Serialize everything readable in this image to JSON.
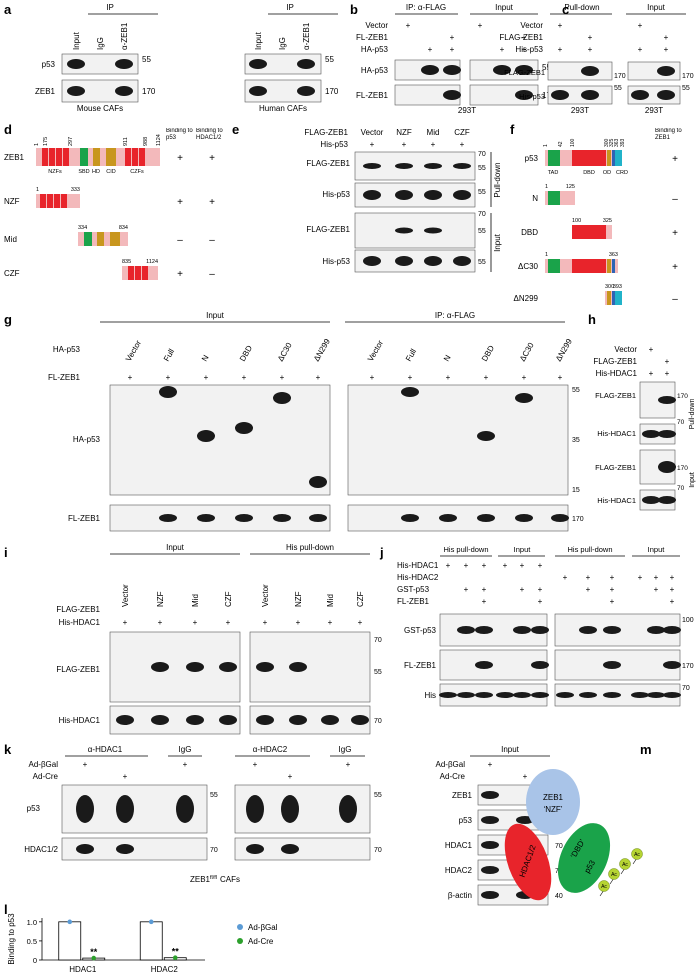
{
  "panels": {
    "a": {
      "label": "a",
      "ip": [
        "IP",
        "IP"
      ],
      "lanes": [
        "Input",
        "IgG",
        "α-ZEB1",
        "Input",
        "IgG",
        "α-ZEB1"
      ],
      "rows": [
        "p53",
        "ZEB1"
      ],
      "mw": [
        55,
        170,
        55,
        170
      ],
      "cells": [
        "Mouse CAFs",
        "Human CAFs"
      ]
    },
    "b": {
      "label": "b",
      "headers": [
        "IP: α-FLAG",
        "Input"
      ],
      "conditions": [
        {
          "name": "Vector",
          "marks": [
            "+",
            null,
            null,
            "+",
            null,
            null
          ]
        },
        {
          "name": "FL-ZEB1",
          "marks": [
            null,
            null,
            "+",
            null,
            null,
            "+"
          ]
        },
        {
          "name": "HA-p53",
          "marks": [
            null,
            "+",
            "+",
            null,
            "+",
            "+"
          ]
        }
      ],
      "rows": [
        "HA-p53",
        "FL-ZEB1"
      ],
      "mw": [
        55,
        170
      ],
      "cell": "293T"
    },
    "c": {
      "label": "c",
      "headers": [
        "Pull-down",
        "Input"
      ],
      "conditions": [
        {
          "name": "Vector",
          "marks": [
            "+",
            null,
            "+",
            null
          ]
        },
        {
          "name": "FLAG-ZEB1",
          "marks": [
            null,
            "+",
            null,
            "+"
          ]
        },
        {
          "name": "His-p53",
          "marks": [
            "+",
            "+",
            "+",
            "+"
          ]
        }
      ],
      "rows": [
        "FLAG-ZEB1",
        "His-p53"
      ],
      "mw": [
        170,
        55,
        170,
        55
      ],
      "cells": [
        "293T",
        "293T"
      ]
    },
    "d": {
      "label": "d",
      "positions": [
        1,
        175,
        297,
        911,
        988,
        1124
      ],
      "domains": [
        "NZFs",
        "SBD",
        "HD",
        "CID",
        "CZFs"
      ],
      "headers": [
        "Binding to p53",
        "Binding to HDAC1/2"
      ],
      "constructs": [
        {
          "name": "ZEB1",
          "binding": [
            "+",
            "+"
          ]
        },
        {
          "name": "NZF",
          "range": [
            1,
            333
          ],
          "binding": [
            "+",
            "+"
          ]
        },
        {
          "name": "Mid",
          "range": [
            334,
            834
          ],
          "binding": [
            "–",
            "–"
          ]
        },
        {
          "name": "CZF",
          "range": [
            835,
            1124
          ],
          "binding": [
            "+",
            "–"
          ]
        }
      ]
    },
    "e": {
      "label": "e",
      "conditions": [
        {
          "name": "FLAG-ZEB1",
          "marks": [
            "Vector",
            "NZF",
            "Mid",
            "CZF"
          ]
        },
        {
          "name": "His-p53",
          "marks": [
            "+",
            "+",
            "+",
            "+"
          ]
        }
      ],
      "rows": [
        "FLAG-ZEB1",
        "His-p53",
        "FLAG-ZEB1",
        "His-p53"
      ],
      "mw": [
        70,
        55,
        55,
        70,
        55,
        55
      ],
      "sections": [
        "Pull-down",
        "Input"
      ]
    },
    "f": {
      "label": "f",
      "positions": [
        1,
        42,
        100,
        300,
        325,
        363,
        393
      ],
      "domains": [
        "TAD",
        "DBD",
        "OD",
        "CRD"
      ],
      "header": "Binding to ZEB1",
      "constructs": [
        {
          "name": "p53",
          "binding": "+"
        },
        {
          "name": "N",
          "range": [
            1,
            125
          ],
          "binding": "–"
        },
        {
          "name": "DBD",
          "range": [
            100,
            325
          ],
          "binding": "+"
        },
        {
          "name": "ΔC30",
          "range": [
            1,
            363
          ],
          "binding": "+"
        },
        {
          "name": "ΔN299",
          "range": [
            300,
            393
          ],
          "binding": "–"
        }
      ]
    },
    "g": {
      "label": "g",
      "headers": [
        "Input",
        "IP: α-FLAG"
      ],
      "conditions": [
        {
          "name": "HA-p53",
          "lanes": [
            "Vector",
            "Full",
            "N",
            "DBD",
            "ΔC30",
            "ΔN299"
          ]
        },
        {
          "name": "FL-ZEB1",
          "marks": [
            "+",
            "+",
            "+",
            "+",
            "+",
            "+",
            "+",
            "+",
            "+",
            "+",
            "+",
            "+"
          ]
        }
      ],
      "rows": [
        "HA-p53",
        "FL-ZEB1"
      ],
      "mw": [
        55,
        35,
        15,
        170
      ]
    },
    "h": {
      "label": "h",
      "conditions": [
        {
          "name": "Vector",
          "marks": [
            "+",
            null
          ]
        },
        {
          "name": "FLAG-ZEB1",
          "marks": [
            null,
            "+"
          ]
        },
        {
          "name": "His-HDAC1",
          "marks": [
            "+",
            "+"
          ]
        }
      ],
      "rows": [
        "FLAG-ZEB1",
        "His-HDAC1",
        "FLAG-ZEB1",
        "His-HDAC1"
      ],
      "mw": [
        170,
        70,
        170,
        70
      ],
      "sections": [
        "Pull-down",
        "Input"
      ]
    },
    "i": {
      "label": "i",
      "headers": [
        "Input",
        "His pull-down"
      ],
      "lanes": [
        "Vector",
        "NZF",
        "Mid",
        "CZF"
      ],
      "conditions": [
        {
          "name": "FLAG-ZEB1"
        },
        {
          "name": "His-HDAC1",
          "marks": [
            "+",
            "+",
            "+",
            "+",
            "+",
            "+",
            "+",
            "+"
          ]
        }
      ],
      "rows": [
        "FLAG-ZEB1",
        "His-HDAC1"
      ],
      "mw": [
        70,
        55,
        70
      ]
    },
    "j": {
      "label": "j",
      "headers": [
        "His pull-down",
        "Input",
        "His pull-down",
        "Input"
      ],
      "conditions": [
        {
          "name": "His-HDAC1",
          "marks": [
            "+",
            "+",
            "+",
            "+",
            "+",
            "+",
            null,
            null,
            null,
            null,
            null,
            null
          ]
        },
        {
          "name": "His-HDAC2",
          "marks": [
            null,
            null,
            null,
            null,
            null,
            null,
            "+",
            "+",
            "+",
            "+",
            "+",
            "+"
          ]
        },
        {
          "name": "GST-p53",
          "marks": [
            null,
            "+",
            "+",
            null,
            "+",
            "+",
            null,
            "+",
            "+",
            null,
            "+",
            "+"
          ]
        },
        {
          "name": "FL-ZEB1",
          "marks": [
            null,
            null,
            "+",
            null,
            null,
            "+",
            null,
            null,
            "+",
            null,
            null,
            "+"
          ]
        }
      ],
      "rows": [
        "GST-p53",
        "FL-ZEB1",
        "His"
      ],
      "mw": [
        100,
        170,
        70
      ]
    },
    "k": {
      "label": "k",
      "headers": [
        "α-HDAC1",
        "IgG",
        "α-HDAC2",
        "IgG"
      ],
      "conditions": [
        {
          "name": "Ad-βGal",
          "marks": [
            "+",
            null,
            "+",
            "+",
            null,
            "+"
          ]
        },
        {
          "name": "Ad-Cre",
          "marks": [
            null,
            "+",
            null,
            null,
            "+",
            null
          ]
        }
      ],
      "rows": [
        "p53",
        "HDAC1/2"
      ],
      "mw": [
        55,
        70,
        55,
        70
      ],
      "caption": {
        "gene": "ZEB1",
        "sup": "fl/fl",
        "cells": "CAFs"
      }
    },
    "k_input": {
      "header": "Input",
      "conditions": [
        {
          "name": "Ad-βGal",
          "marks": [
            "+",
            null
          ]
        },
        {
          "name": "Ad-Cre",
          "marks": [
            null,
            "+"
          ]
        }
      ],
      "rows": [
        "ZEB1",
        "p53",
        "HDAC1",
        "HDAC2",
        "β-actin"
      ],
      "mw": [
        170,
        55,
        70,
        70,
        40
      ]
    },
    "l": {
      "label": "l"
    },
    "m": {
      "label": "m",
      "zeb1": [
        "ZEB1",
        "‘NZF’"
      ],
      "hdac": "HDAC1/2",
      "p53": [
        "‘DBD’",
        "p53"
      ],
      "ac": "Ac"
    }
  },
  "chart_data": {
    "type": "bar",
    "ylabel": "Binding to p53",
    "categories": [
      "HDAC1",
      "HDAC2"
    ],
    "series": [
      {
        "name": "Ad-βGal",
        "color": "#5b9bd5",
        "values": [
          1,
          1
        ]
      },
      {
        "name": "Ad-Cre",
        "color": "#2ca02c",
        "values": [
          0.05,
          0.06
        ],
        "annotations": [
          "**",
          "**"
        ]
      }
    ],
    "ylim": [
      0,
      1.1
    ],
    "yticks": [
      0,
      0.5,
      {
        "value": 1,
        "label": "1.0"
      }
    ]
  }
}
